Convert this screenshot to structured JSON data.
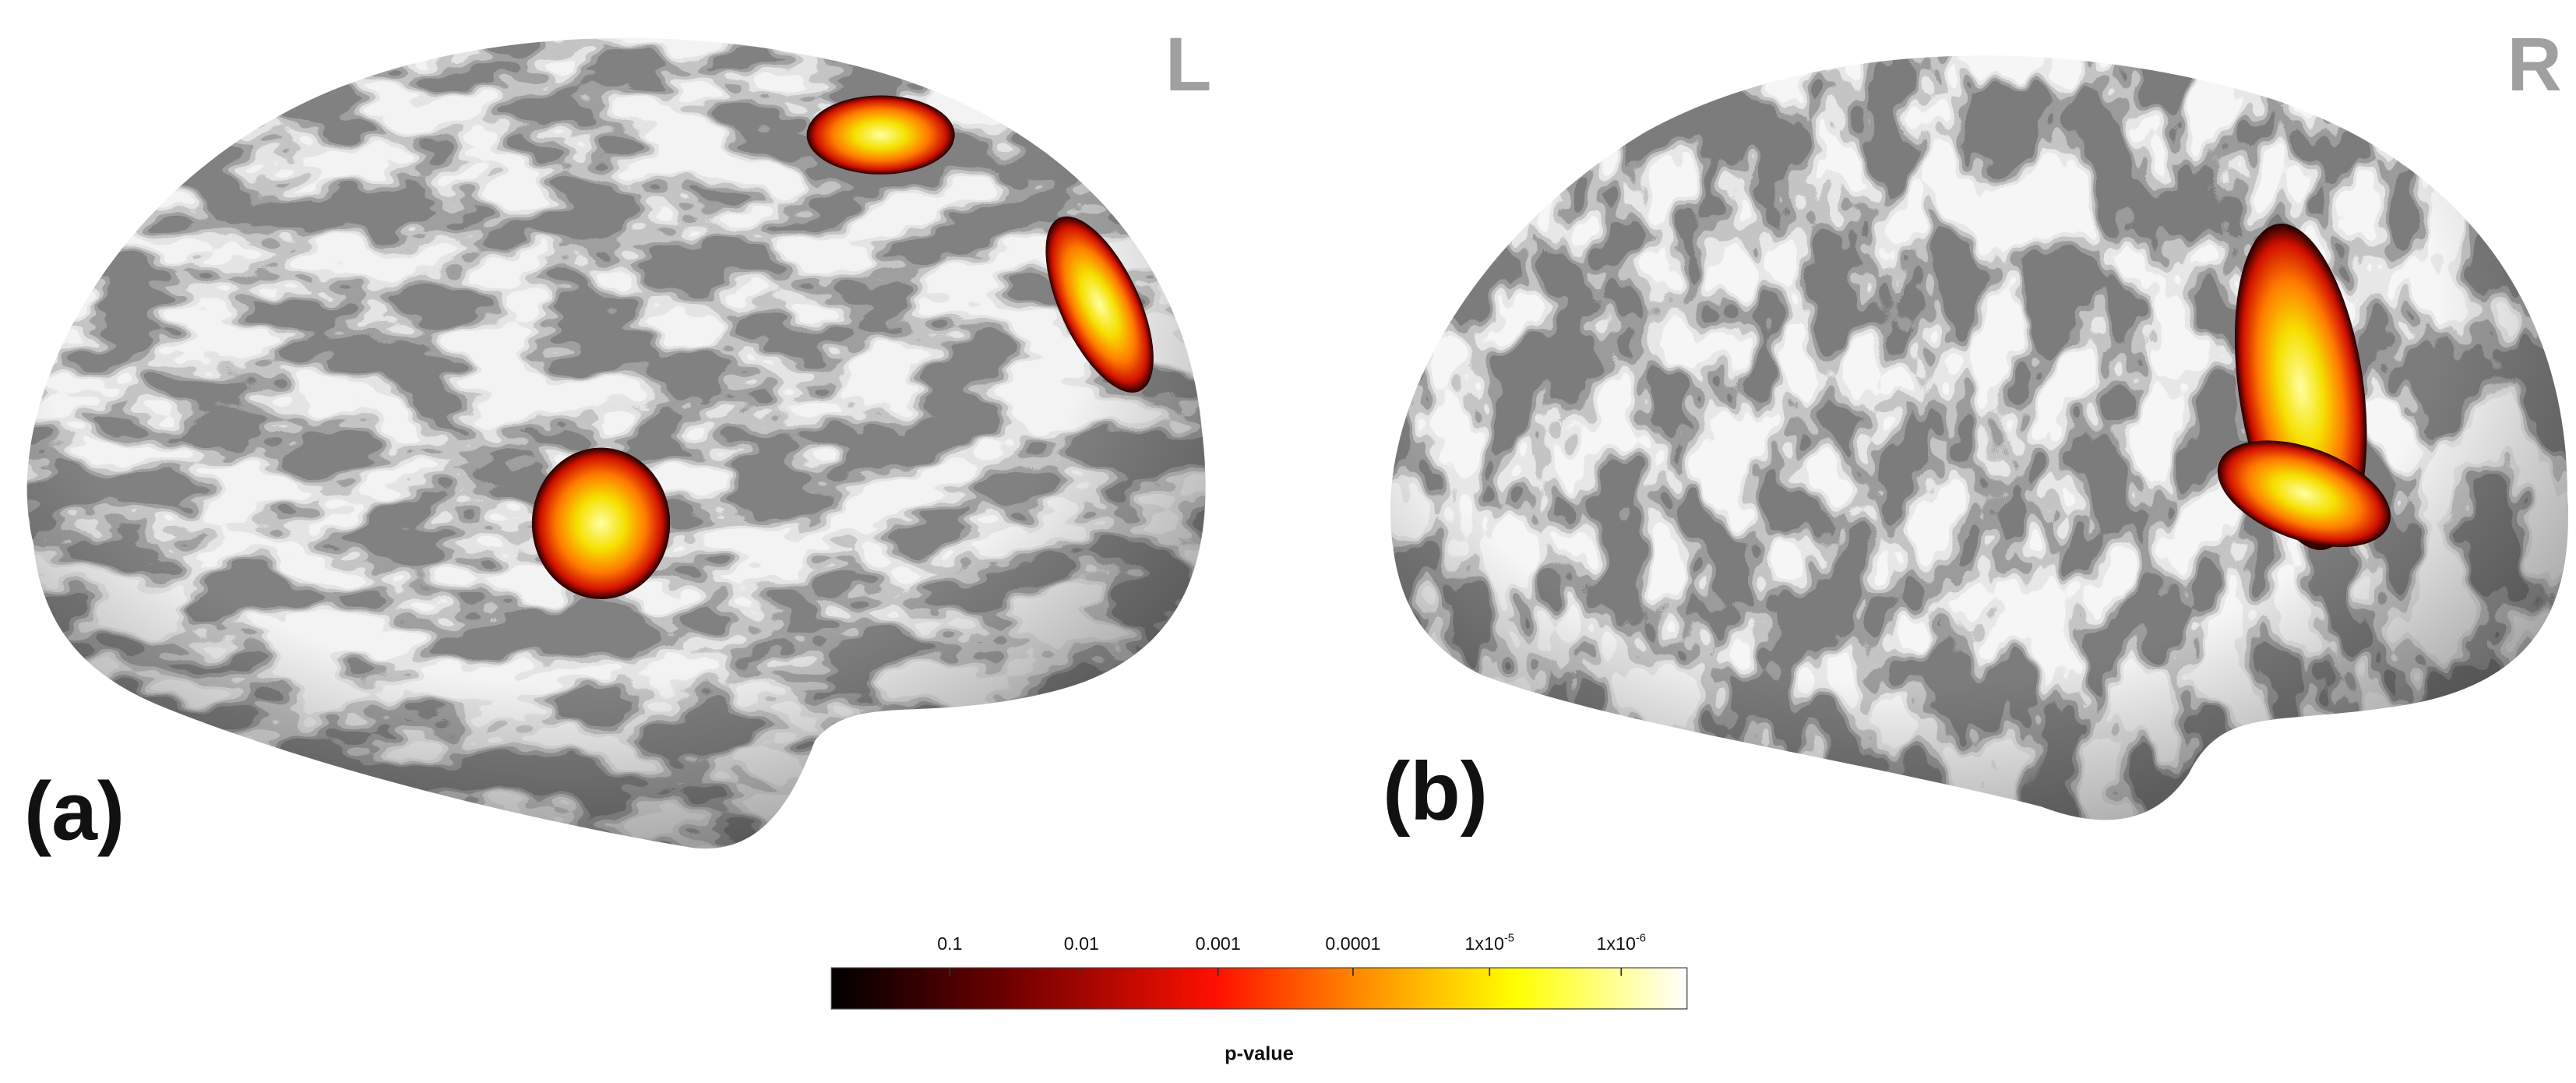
{
  "panels": [
    {
      "tag": "(a)",
      "hemisphere": "L"
    },
    {
      "tag": "(b)",
      "hemisphere": "R"
    }
  ],
  "colorbar": {
    "ticks": [
      {
        "text": "0.1"
      },
      {
        "text": "0.01"
      },
      {
        "text": "0.001"
      },
      {
        "text": "0.0001"
      },
      {
        "text": "1x10",
        "sup": "-5"
      },
      {
        "text": "1x10",
        "sup": "-6"
      }
    ],
    "label": "p-value"
  }
}
